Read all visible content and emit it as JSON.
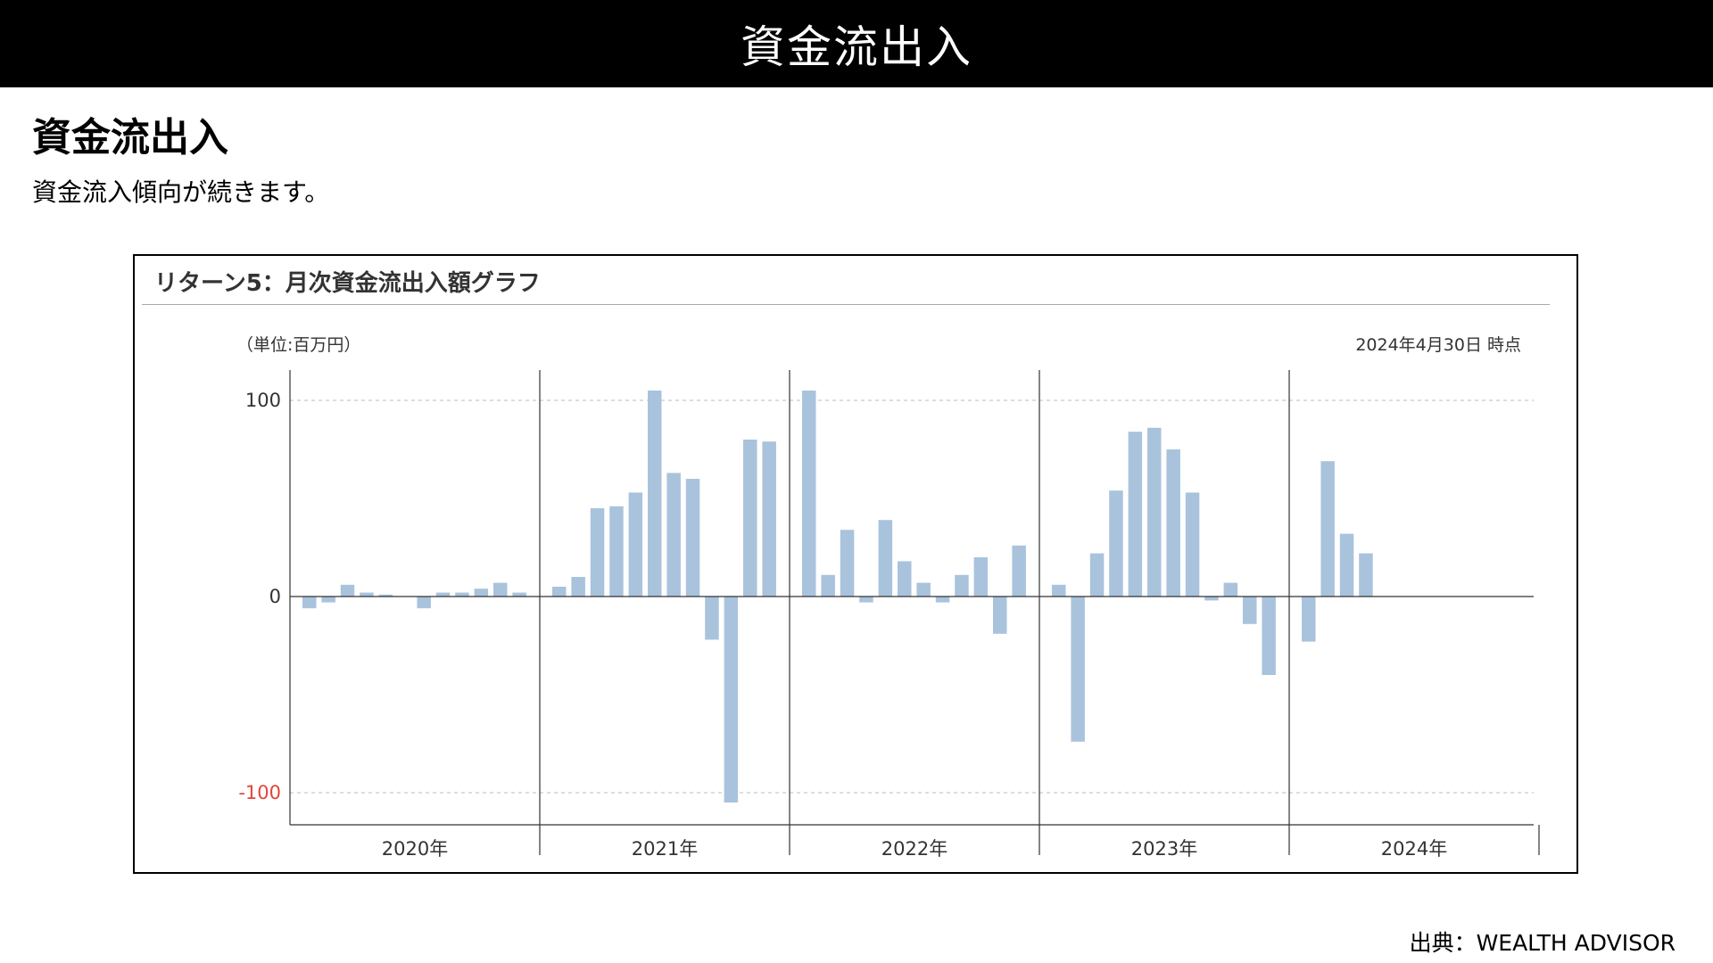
{
  "banner": {
    "title": "資金流出入"
  },
  "section": {
    "heading": "資金流出入",
    "description": "資金流入傾向が続きます。"
  },
  "chart": {
    "title": "リターン5：月次資金流出入額グラフ",
    "unit_note": "（単位:百万円）",
    "as_of": "2024年4月30日 時点"
  },
  "source": "出典：WEALTH ADVISOR",
  "colors": {
    "bar": "#a9c3dc",
    "negative_tick": "#e0463a",
    "grid": "#bbbbbb",
    "axis": "#333333"
  },
  "chart_data": {
    "type": "bar",
    "title": "リターン5：月次資金流出入額グラフ",
    "xlabel": "",
    "ylabel": "",
    "unit": "百万円",
    "ylim": [
      -115,
      115
    ],
    "yticks": [
      100,
      0,
      -100
    ],
    "grid": "dashed horizontal at ±100",
    "year_groups": [
      {
        "label": "2020年",
        "values": [
          -6,
          -3,
          6,
          2,
          1,
          null,
          -6,
          2,
          2,
          4,
          7,
          2
        ]
      },
      {
        "label": "2021年",
        "values": [
          5,
          10,
          45,
          46,
          53,
          105,
          63,
          60,
          -22,
          -105,
          80,
          79
        ]
      },
      {
        "label": "2022年",
        "values": [
          105,
          11,
          34,
          -3,
          39,
          18,
          7,
          -3,
          11,
          20,
          -19,
          26
        ]
      },
      {
        "label": "2023年",
        "values": [
          6,
          -74,
          22,
          54,
          84,
          86,
          75,
          53,
          -2,
          7,
          -14,
          -40
        ]
      },
      {
        "label": "2024年",
        "values": [
          -23,
          69,
          32,
          22,
          null,
          null,
          null,
          null,
          null,
          null,
          null,
          null
        ]
      }
    ]
  }
}
